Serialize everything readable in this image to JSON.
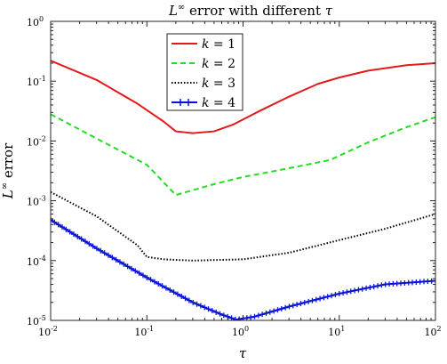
{
  "colors": {
    "k1": "#e31a1c",
    "k2": "#22dd22",
    "k3": "#000000",
    "k4": "#0a14d8"
  },
  "chart_data": {
    "type": "line",
    "title": "L∞ error with different τ",
    "title_prefix": "L",
    "title_sup": "∞",
    "title_suffix": " error with different ",
    "title_tau": "τ",
    "xlabel": "τ",
    "ylabel_prefix": "L",
    "ylabel_sup": "∞",
    "ylabel_suffix": " error",
    "xscale": "log",
    "yscale": "log",
    "xlim": [
      0.01,
      100
    ],
    "ylim": [
      1e-05,
      1
    ],
    "grid": false,
    "legend_position": "top-center",
    "xticks": [
      {
        "value": 0.01,
        "base": "10",
        "exp": "-2"
      },
      {
        "value": 0.1,
        "base": "10",
        "exp": "-1"
      },
      {
        "value": 1,
        "base": "10",
        "exp": "0"
      },
      {
        "value": 10,
        "base": "10",
        "exp": "1"
      },
      {
        "value": 100,
        "base": "10",
        "exp": "2"
      }
    ],
    "yticks": [
      {
        "value": 1e-05,
        "base": "10",
        "exp": "-5"
      },
      {
        "value": 0.0001,
        "base": "10",
        "exp": "-4"
      },
      {
        "value": 0.001,
        "base": "10",
        "exp": "-3"
      },
      {
        "value": 0.01,
        "base": "10",
        "exp": "-2"
      },
      {
        "value": 0.1,
        "base": "10",
        "exp": "-1"
      },
      {
        "value": 1,
        "base": "10",
        "exp": "0"
      }
    ],
    "series": [
      {
        "name": "k = 1",
        "var": "k",
        "num": "1",
        "style": "solid",
        "x": [
          0.01,
          0.03,
          0.08,
          0.15,
          0.2,
          0.3,
          0.5,
          0.8,
          1.5,
          3,
          6,
          10,
          20,
          50,
          100
        ],
        "y": [
          0.22,
          0.105,
          0.042,
          0.021,
          0.0145,
          0.0135,
          0.0145,
          0.019,
          0.032,
          0.055,
          0.09,
          0.115,
          0.15,
          0.185,
          0.2
        ]
      },
      {
        "name": "k = 2",
        "var": "k",
        "num": "2",
        "style": "dashed",
        "x": [
          0.01,
          0.03,
          0.1,
          0.2,
          0.5,
          1,
          3,
          8,
          20,
          50,
          100
        ],
        "y": [
          0.028,
          0.011,
          0.004,
          0.00125,
          0.0019,
          0.0025,
          0.0035,
          0.0048,
          0.0095,
          0.017,
          0.025
        ]
      },
      {
        "name": "k = 3",
        "var": "k",
        "num": "3",
        "style": "dotted",
        "x": [
          0.01,
          0.03,
          0.08,
          0.1,
          0.15,
          0.3,
          1,
          3,
          10,
          30,
          100
        ],
        "y": [
          0.0014,
          0.00055,
          0.00018,
          0.000115,
          0.000105,
          0.0001,
          0.000105,
          0.000135,
          0.00022,
          0.00034,
          0.0006
        ]
      },
      {
        "name": "k = 4",
        "var": "k",
        "num": "4",
        "style": "solid-plus",
        "x": [
          0.01,
          0.03,
          0.1,
          0.3,
          0.6,
          0.85,
          1.3,
          3,
          10,
          30,
          100
        ],
        "y": [
          0.00048,
          0.00016,
          5.2e-05,
          2e-05,
          1.25e-05,
          1.03e-05,
          1.15e-05,
          1.7e-05,
          2.8e-05,
          4e-05,
          4.6e-05
        ]
      }
    ]
  }
}
